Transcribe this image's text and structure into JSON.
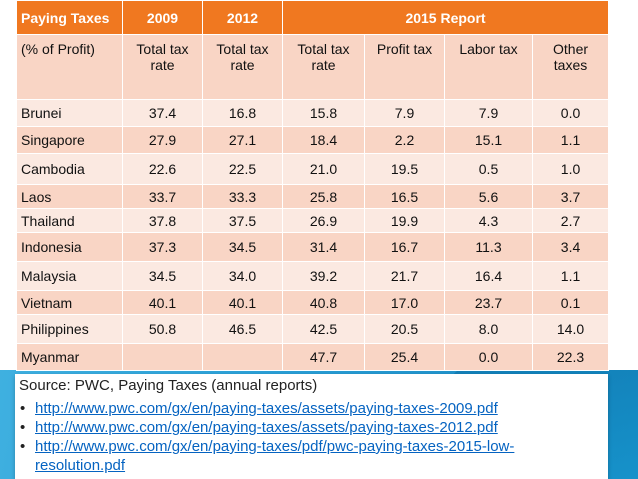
{
  "table": {
    "header": [
      "Paying Taxes",
      "2009",
      "2012",
      "2015 Report"
    ],
    "subheader": [
      "(% of Profit)",
      "Total tax rate",
      "Total tax rate",
      "Total tax rate",
      "Profit tax",
      "Labor tax",
      "Other taxes"
    ],
    "rows": [
      [
        "Brunei",
        "37.4",
        "16.8",
        "15.8",
        "7.9",
        "7.9",
        "0.0"
      ],
      [
        "Singapore",
        "27.9",
        "27.1",
        "18.4",
        "2.2",
        "15.1",
        "1.1"
      ],
      [
        "Cambodia",
        "22.6",
        "22.5",
        "21.0",
        "19.5",
        "0.5",
        "1.0"
      ],
      [
        "Laos",
        "33.7",
        "33.3",
        "25.8",
        "16.5",
        "5.6",
        "3.7"
      ],
      [
        "Thailand",
        "37.8",
        "37.5",
        "26.9",
        "19.9",
        "4.3",
        "2.7"
      ],
      [
        "Indonesia",
        "37.3",
        "34.5",
        "31.4",
        "16.7",
        "11.3",
        "3.4"
      ],
      [
        "Malaysia",
        "34.5",
        "34.0",
        "39.2",
        "21.7",
        "16.4",
        "1.1"
      ],
      [
        "Vietnam",
        "40.1",
        "40.1",
        "40.8",
        "17.0",
        "23.7",
        "0.1"
      ],
      [
        "Philippines",
        "50.8",
        "46.5",
        "42.5",
        "20.5",
        "8.0",
        "14.0"
      ],
      [
        "Myanmar",
        "",
        "",
        "47.7",
        "25.4",
        "0.0",
        "22.3"
      ]
    ]
  },
  "source": {
    "title": "Source: PWC, Paying Taxes (annual reports)",
    "links": [
      "http://www.pwc.com/gx/en/paying-taxes/assets/paying-taxes-2009.pdf",
      "http://www.pwc.com/gx/en/paying-taxes/assets/paying-taxes-2012.pdf",
      " http://www.pwc.com/gx/en/paying-taxes/pdf/pwc-paying-taxes-2015-low-resolution.pdf"
    ],
    "bullet": "•"
  },
  "colors": {
    "header_bg": "#f07820",
    "row_odd_bg": "#f9d5c5",
    "row_even_bg": "#fbe9e1",
    "link": "#0563c1",
    "band": "#1a8fc5"
  }
}
